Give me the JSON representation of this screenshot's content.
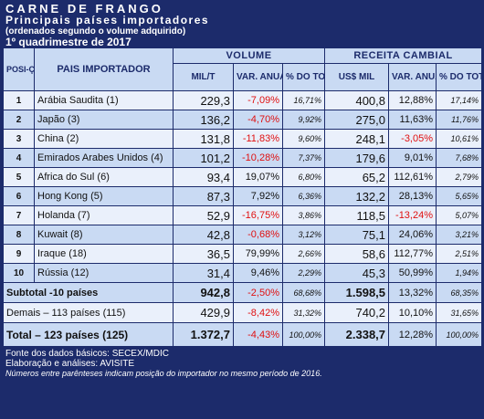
{
  "header": {
    "title": "CARNE DE FRANGO",
    "subtitle": "Principais países importadores",
    "note": "(ordenados segundo o volume adquirido)",
    "period": "1º quadrimestre de 2017"
  },
  "columns": {
    "pos": "POSI-ÇÃO",
    "country": "PAIS IMPORTADOR",
    "volume_group": "VOLUME",
    "revenue_group": "RECEITA CAMBIAL",
    "mil_t": "MIL/T",
    "var_anual": "VAR. ANUAL",
    "pct_total": "% DO TOTAL",
    "us_mil": "US$ MIL"
  },
  "rows": [
    {
      "pos": "1",
      "country": "Arábia Saudita (1)",
      "vol": "229,3",
      "vol_var": "-7,09%",
      "vol_pct": "16,71%",
      "rev": "400,8",
      "rev_var": "12,88%",
      "rev_pct": "17,14%"
    },
    {
      "pos": "2",
      "country": "Japão (3)",
      "vol": "136,2",
      "vol_var": "-4,70%",
      "vol_pct": "9,92%",
      "rev": "275,0",
      "rev_var": "11,63%",
      "rev_pct": "11,76%"
    },
    {
      "pos": "3",
      "country": "China (2)",
      "vol": "131,8",
      "vol_var": "-11,83%",
      "vol_pct": "9,60%",
      "rev": "248,1",
      "rev_var": "-3,05%",
      "rev_pct": "10,61%"
    },
    {
      "pos": "4",
      "country": "Emirados Arabes Unidos (4)",
      "vol": "101,2",
      "vol_var": "-10,28%",
      "vol_pct": "7,37%",
      "rev": "179,6",
      "rev_var": "9,01%",
      "rev_pct": "7,68%"
    },
    {
      "pos": "5",
      "country": "Africa do Sul (6)",
      "vol": "93,4",
      "vol_var": "19,07%",
      "vol_pct": "6,80%",
      "rev": "65,2",
      "rev_var": "112,61%",
      "rev_pct": "2,79%"
    },
    {
      "pos": "6",
      "country": "Hong Kong (5)",
      "vol": "87,3",
      "vol_var": "7,92%",
      "vol_pct": "6,36%",
      "rev": "132,2",
      "rev_var": "28,13%",
      "rev_pct": "5,65%"
    },
    {
      "pos": "7",
      "country": "Holanda (7)",
      "vol": "52,9",
      "vol_var": "-16,75%",
      "vol_pct": "3,86%",
      "rev": "118,5",
      "rev_var": "-13,24%",
      "rev_pct": "5,07%"
    },
    {
      "pos": "8",
      "country": "Kuwait (8)",
      "vol": "42,8",
      "vol_var": "-0,68%",
      "vol_pct": "3,12%",
      "rev": "75,1",
      "rev_var": "24,06%",
      "rev_pct": "3,21%"
    },
    {
      "pos": "9",
      "country": "Iraque (18)",
      "vol": "36,5",
      "vol_var": "79,99%",
      "vol_pct": "2,66%",
      "rev": "58,6",
      "rev_var": "112,77%",
      "rev_pct": "2,51%"
    },
    {
      "pos": "10",
      "country": "Rússia (12)",
      "vol": "31,4",
      "vol_var": "9,46%",
      "vol_pct": "2,29%",
      "rev": "45,3",
      "rev_var": "50,99%",
      "rev_pct": "1,94%"
    }
  ],
  "subtotal": {
    "label": "Subtotal -10 países",
    "vol": "942,8",
    "vol_var": "-2,50%",
    "vol_pct": "68,68%",
    "rev": "1.598,5",
    "rev_var": "13,32%",
    "rev_pct": "68,35%"
  },
  "others": {
    "label": "Demais – 113 países (115)",
    "vol": "429,9",
    "vol_var": "-8,42%",
    "vol_pct": "31,32%",
    "rev": "740,2",
    "rev_var": "10,10%",
    "rev_pct": "31,65%"
  },
  "total": {
    "label": "Total – 123 países (125)",
    "vol": "1.372,7",
    "vol_var": "-4,43%",
    "vol_pct": "100,00%",
    "rev": "2.338,7",
    "rev_var": "12,28%",
    "rev_pct": "100,00%"
  },
  "footer": {
    "source": "Fonte dos dados básicos: SECEX/MDIC",
    "analysis": "Elaboração e análises: AVISITE",
    "note": "Números entre parênteses indicam posição do importador no mesmo período de 2016."
  },
  "colors": {
    "background": "#1c2b6b",
    "row_light": "#eaf0fb",
    "row_dark": "#c9daf3",
    "negative": "#e01010"
  }
}
